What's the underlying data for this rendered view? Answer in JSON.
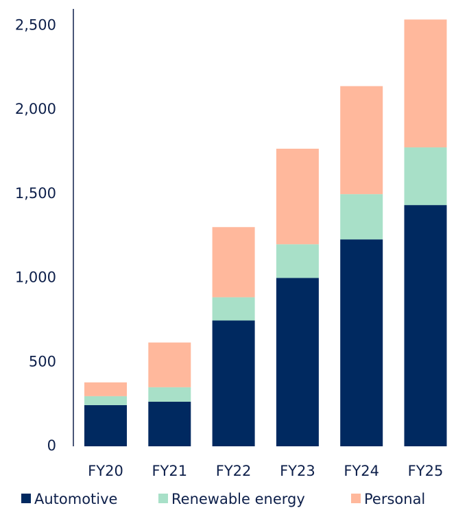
{
  "chart_data": {
    "type": "stacked_bar",
    "categories": [
      "FY20",
      "FY21",
      "FY22",
      "FY23",
      "FY24",
      "FY25"
    ],
    "series": [
      {
        "name": "Automotive",
        "color": "#002960",
        "values": [
          245,
          265,
          748,
          1001,
          1230,
          1434
        ]
      },
      {
        "name": "Renewable energy",
        "color": "#a8e0c8",
        "values": [
          53,
          86,
          138,
          200,
          269,
          343
        ]
      },
      {
        "name": "Personal",
        "color": "#ffb89c",
        "values": [
          82,
          266,
          417,
          568,
          642,
          760
        ]
      }
    ],
    "ylim": [
      0,
      2600
    ],
    "yticks": [
      0,
      500,
      {
        "value": 1000,
        "label": "1,000"
      },
      {
        "value": 1500,
        "label": "1,500"
      },
      {
        "value": 2000,
        "label": "2,000"
      },
      {
        "value": 2500,
        "label": "2,500"
      }
    ],
    "grid": false,
    "legend": "bottom"
  }
}
